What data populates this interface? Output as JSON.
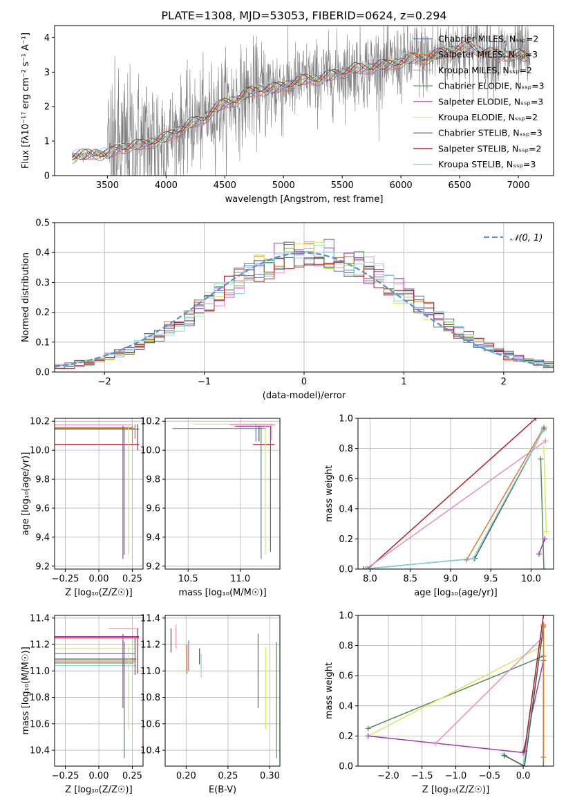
{
  "figure": {
    "title": "PLATE=1308, MJD=53053, FIBERID=0624, z=0.294"
  },
  "chart_data": [
    {
      "id": "spectrum",
      "type": "line",
      "xlabel": "wavelength [Angstrom, rest frame]",
      "ylabel": "Flux [fλ10⁻¹⁷ erg cm⁻² s⁻¹ A⁻¹]",
      "xlim": [
        3050,
        7300
      ],
      "ylim": [
        0,
        4.35
      ],
      "xticks": [
        3500,
        4000,
        4500,
        5000,
        5500,
        6000,
        6500,
        7000
      ],
      "yticks": [
        0,
        1,
        2,
        3,
        4
      ],
      "grid": false,
      "legend_position": "top-right",
      "legend": [
        {
          "label": "Chabrier MILES, Nₛₛₚ=2",
          "color": "#5b7fd0"
        },
        {
          "label": "Salpeter MILES, Nₛₛₚ=3",
          "color": "#e07a2e"
        },
        {
          "label": "Kroupa MILES, Nₛₛₚ=2",
          "color": "#e58cc4"
        },
        {
          "label": "Chabrier ELODIE, Nₛₛₚ=3",
          "color": "#5a8a5c"
        },
        {
          "label": "Salpeter ELODIE, Nₛₛₚ=3",
          "color": "#9b3ab0"
        },
        {
          "label": "Kroupa ELODIE, Nₛₛₚ=2",
          "color": "#d4ec55"
        },
        {
          "label": "Chabrier STELIB, Nₛₛₚ=3",
          "color": "#4b5a4c"
        },
        {
          "label": "Salpeter STELIB, Nₛₛₚ=2",
          "color": "#b51c1c"
        },
        {
          "label": "Kroupa STELIB, Nₛₛₚ=3",
          "color": "#7fd7e0"
        }
      ],
      "data_color": "#808080",
      "data": {
        "x": [
          3200,
          3300,
          3400,
          3500,
          3600,
          3700,
          3800,
          3900,
          4000,
          4100,
          4200,
          4300,
          4400,
          4500,
          4600,
          4700,
          4800,
          4900,
          5000,
          5100,
          5200,
          5300,
          5400,
          5500,
          5600,
          5700,
          5800,
          5900,
          6000,
          6100,
          6200,
          6300,
          6400,
          6500,
          6600,
          6700,
          6800,
          6900,
          7000,
          7100
        ],
        "y": [
          0.55,
          0.6,
          0.65,
          0.6,
          0.8,
          0.85,
          0.9,
          1.0,
          1.1,
          1.3,
          1.5,
          1.6,
          1.9,
          2.1,
          2.2,
          2.4,
          2.5,
          2.5,
          2.6,
          2.7,
          2.8,
          2.8,
          2.9,
          3.0,
          3.1,
          3.1,
          3.2,
          3.2,
          3.3,
          3.4,
          3.4,
          3.5,
          3.6,
          3.7,
          3.7,
          3.6,
          3.5,
          3.5,
          3.5,
          3.4
        ]
      }
    },
    {
      "id": "residuals",
      "type": "histogram",
      "xlabel": "(data-model)/error",
      "ylabel": "Normed distribution",
      "xlim": [
        -2.5,
        2.5
      ],
      "ylim": [
        0,
        0.5
      ],
      "xticks": [
        -2,
        -1,
        0,
        1,
        2
      ],
      "yticks": [
        0.0,
        0.1,
        0.2,
        0.3,
        0.4,
        0.5
      ],
      "grid": true,
      "legend_position": "top-right",
      "legend": [
        {
          "label": "𝒩(0, 1)",
          "color": "#5b8fd8",
          "style": "dashed"
        }
      ],
      "bin_width": 0.1,
      "reference_curve": "normal(0,1) pdf"
    },
    {
      "id": "age-vs-Z",
      "type": "errorbar",
      "xlabel": "Z [log₁₀(Z/Z☉)]",
      "ylabel": "age  [log₁₀(age/yr)]",
      "xlim": [
        -0.33,
        0.33
      ],
      "ylim": [
        9.18,
        10.22
      ],
      "xticks": [
        -0.25,
        0.0,
        0.25
      ],
      "yticks": [
        9.2,
        9.4,
        9.6,
        9.8,
        10.0,
        10.2
      ],
      "grid": true,
      "hlines": [
        {
          "y": 10.175,
          "x": [
            -0.33,
            0.25
          ],
          "color": "#e58cc4"
        },
        {
          "y": 10.155,
          "x": [
            -0.33,
            0.25
          ],
          "color": "#e07a2e"
        },
        {
          "y": 10.15,
          "x": [
            -0.33,
            0.27
          ],
          "color": "#5b7fd0"
        },
        {
          "y": 10.145,
          "x": [
            -0.33,
            0.3
          ],
          "color": "#5a8a5c"
        },
        {
          "y": 10.04,
          "x": [
            -0.33,
            0.3
          ],
          "color": "#b51c1c"
        }
      ],
      "vlines": [
        {
          "x": 0.18,
          "y": [
            9.25,
            10.17
          ],
          "color": "#9b3ab0"
        },
        {
          "x": 0.19,
          "y": [
            9.28,
            10.16
          ],
          "color": "#5a8a5c"
        },
        {
          "x": 0.22,
          "y": [
            9.28,
            10.18
          ],
          "color": "#d4ec55"
        },
        {
          "x": 0.25,
          "y": [
            10.05,
            10.17
          ],
          "color": "#e07a2e"
        },
        {
          "x": 0.27,
          "y": [
            10.08,
            10.18
          ],
          "color": "#5b7fd0"
        },
        {
          "x": 0.29,
          "y": [
            10.0,
            10.18
          ],
          "color": "#b51c1c"
        }
      ]
    },
    {
      "id": "age-vs-mass",
      "type": "errorbar",
      "xlabel": "mass [log₁₀(M/M☉)]",
      "ylabel": "",
      "xlim": [
        10.28,
        11.38
      ],
      "ylim": [
        9.18,
        10.22
      ],
      "xticks": [
        10.5,
        11.0
      ],
      "yticks": [
        9.2,
        9.4,
        9.6,
        9.8,
        10.0,
        10.2
      ],
      "grid": true,
      "hlines": [
        {
          "y": 10.18,
          "x": [
            10.55,
            11.32
          ],
          "color": "#d4ec55"
        },
        {
          "y": 10.175,
          "x": [
            10.9,
            11.34
          ],
          "color": "#e58cc4"
        },
        {
          "y": 10.165,
          "x": [
            10.95,
            11.28
          ],
          "color": "#9b3ab0"
        },
        {
          "y": 10.15,
          "x": [
            10.35,
            11.25
          ],
          "color": "#5a8a5c"
        },
        {
          "y": 10.04,
          "x": [
            11.12,
            11.33
          ],
          "color": "#b51c1c"
        }
      ],
      "vlines": [
        {
          "x": 11.15,
          "y": [
            10.06,
            10.18
          ],
          "color": "#5b7fd0"
        },
        {
          "x": 11.18,
          "y": [
            10.06,
            10.17
          ],
          "color": "#4b5a4c"
        },
        {
          "x": 11.2,
          "y": [
            9.25,
            10.16
          ],
          "color": "#5a8a5c"
        },
        {
          "x": 11.24,
          "y": [
            9.28,
            10.17
          ],
          "color": "#d4ec55"
        },
        {
          "x": 11.29,
          "y": [
            9.3,
            10.17
          ],
          "color": "#9b3ab0"
        },
        {
          "x": 11.3,
          "y": [
            10.07,
            10.18
          ],
          "color": "#e58cc4"
        }
      ]
    },
    {
      "id": "mass-weight-vs-age",
      "type": "line",
      "xlabel": "age  [log₁₀(age/yr)]",
      "ylabel": "mass weight",
      "xlim": [
        7.85,
        10.28
      ],
      "ylim": [
        0,
        1
      ],
      "xticks": [
        8.0,
        8.5,
        9.0,
        9.5,
        10.0
      ],
      "yticks": [
        0.0,
        0.2,
        0.4,
        0.6,
        0.8,
        1.0
      ],
      "grid": true,
      "series": [
        {
          "color": "#b51c1c",
          "x": [
            7.97,
            10.06
          ],
          "y": [
            0.0,
            1.0
          ]
        },
        {
          "color": "#e58cc4",
          "x": [
            7.95,
            10.18
          ],
          "y": [
            0.0,
            0.85
          ]
        },
        {
          "color": "#e07a2e",
          "x": [
            9.2,
            10.16
          ],
          "y": [
            0.06,
            0.94
          ]
        },
        {
          "color": "#4b5a4c",
          "x": [
            7.92,
            9.3,
            10.16
          ],
          "y": [
            0.0,
            0.07,
            0.93
          ]
        },
        {
          "color": "#7fd7e0",
          "x": [
            7.94,
            9.28,
            10.15
          ],
          "y": [
            0.0,
            0.07,
            0.92
          ]
        },
        {
          "color": "#5a8a5c",
          "x": [
            10.12,
            10.16
          ],
          "y": [
            0.73,
            0.0
          ]
        },
        {
          "color": "#9b3ab0",
          "x": [
            10.1,
            10.17
          ],
          "y": [
            0.1,
            0.2
          ]
        },
        {
          "color": "#d4ec55",
          "x": [
            10.16,
            10.19
          ],
          "y": [
            0.8,
            0.25
          ]
        }
      ]
    },
    {
      "id": "mass-vs-Z",
      "type": "errorbar",
      "xlabel": "Z [log₁₀(Z/Z☉)]",
      "ylabel": "mass [log₁₀(M/M☉)]",
      "xlim": [
        -0.33,
        0.33
      ],
      "ylim": [
        10.28,
        11.42
      ],
      "xticks": [
        -0.25,
        0.0,
        0.25
      ],
      "yticks": [
        10.4,
        10.6,
        10.8,
        11.0,
        11.2,
        11.4
      ],
      "grid": true,
      "hlines": [
        {
          "y": 11.26,
          "x": [
            -0.33,
            0.3
          ],
          "color": "#9b3ab0"
        },
        {
          "y": 11.25,
          "x": [
            -0.33,
            0.3
          ],
          "color": "#b51c1c"
        },
        {
          "y": 11.17,
          "x": [
            -0.33,
            0.28
          ],
          "color": "#d4ec55"
        },
        {
          "y": 11.13,
          "x": [
            -0.33,
            0.27
          ],
          "color": "#5b7fd0"
        },
        {
          "y": 11.09,
          "x": [
            -0.33,
            0.28
          ],
          "color": "#4b5a4c"
        },
        {
          "y": 11.075,
          "x": [
            -0.33,
            0.27
          ],
          "color": "#e07a2e"
        },
        {
          "y": 11.06,
          "x": [
            -0.33,
            0.26
          ],
          "color": "#5a8a5c"
        },
        {
          "y": 11.04,
          "x": [
            -0.33,
            0.28
          ],
          "color": "#7fd7e0"
        },
        {
          "y": 11.32,
          "x": [
            0.07,
            0.3
          ],
          "color": "#e58cc4"
        }
      ],
      "vlines": [
        {
          "x": 0.18,
          "y": [
            10.72,
            11.28
          ],
          "color": "#9b3ab0"
        },
        {
          "x": 0.19,
          "y": [
            10.34,
            11.22
          ],
          "color": "#5a8a5c"
        },
        {
          "x": 0.22,
          "y": [
            10.56,
            11.18
          ],
          "color": "#d4ec55"
        },
        {
          "x": 0.27,
          "y": [
            10.97,
            11.25
          ],
          "color": "#4b5a4c"
        },
        {
          "x": 0.29,
          "y": [
            10.98,
            11.32
          ],
          "color": "#b51c1c"
        }
      ]
    },
    {
      "id": "mass-vs-ebv",
      "type": "errorbar",
      "xlabel": "E(B-V)",
      "ylabel": "",
      "xlim": [
        0.175,
        0.312
      ],
      "ylim": [
        10.28,
        11.42
      ],
      "xticks": [
        0.2,
        0.25,
        0.3
      ],
      "yticks": [
        10.4,
        10.6,
        10.8,
        11.0,
        11.2,
        11.4
      ],
      "grid": true,
      "vlines": [
        {
          "x": 0.182,
          "y": [
            11.14,
            11.32
          ],
          "color": "#b51c1c"
        },
        {
          "x": 0.188,
          "y": [
            11.17,
            11.35
          ],
          "color": "#e58cc4"
        },
        {
          "x": 0.201,
          "y": [
            10.98,
            11.2
          ],
          "color": "#e07a2e"
        },
        {
          "x": 0.203,
          "y": [
            11.0,
            11.23
          ],
          "color": "#5b7fd0"
        },
        {
          "x": 0.216,
          "y": [
            11.05,
            11.17
          ],
          "color": "#4b5a4c"
        },
        {
          "x": 0.218,
          "y": [
            10.95,
            11.13
          ],
          "color": "#7fd7e0"
        },
        {
          "x": 0.286,
          "y": [
            10.72,
            11.28
          ],
          "color": "#9b3ab0"
        },
        {
          "x": 0.295,
          "y": [
            10.56,
            11.18
          ],
          "color": "#d4ec55"
        },
        {
          "x": 0.308,
          "y": [
            10.34,
            11.22
          ],
          "color": "#5a8a5c"
        }
      ]
    },
    {
      "id": "mass-weight-vs-Z",
      "type": "line",
      "xlabel": "Z [log₁₀(Z/Z☉)]",
      "ylabel": "mass weight",
      "xlim": [
        -2.45,
        0.45
      ],
      "ylim": [
        0,
        1
      ],
      "xticks": [
        -2.0,
        -1.5,
        -1.0,
        -0.5,
        0.0
      ],
      "yticks": [
        0.0,
        0.2,
        0.4,
        0.6,
        0.8,
        1.0
      ],
      "grid": true,
      "series": [
        {
          "color": "#5a8a5c",
          "x": [
            -2.3,
            0.3,
            0.3
          ],
          "y": [
            0.25,
            0.73,
            0.0
          ]
        },
        {
          "color": "#d4ec55",
          "x": [
            -2.3,
            0.3
          ],
          "y": [
            0.2,
            0.8
          ]
        },
        {
          "color": "#9b3ab0",
          "x": [
            -2.3,
            0.0,
            0.3
          ],
          "y": [
            0.2,
            0.09,
            0.7
          ]
        },
        {
          "color": "#e58cc4",
          "x": [
            -1.3,
            0.28
          ],
          "y": [
            0.15,
            0.85
          ]
        },
        {
          "color": "#7fd7e0",
          "x": [
            -0.3,
            0.0,
            0.3
          ],
          "y": [
            0.08,
            0.0,
            0.92
          ]
        },
        {
          "color": "#4b5a4c",
          "x": [
            -0.28,
            0.02,
            0.3
          ],
          "y": [
            0.07,
            0.0,
            0.93
          ]
        },
        {
          "color": "#b51c1c",
          "x": [
            0.02,
            0.3
          ],
          "y": [
            0.1,
            1.0
          ]
        },
        {
          "color": "#e07a2e",
          "x": [
            0.3,
            0.3
          ],
          "y": [
            0.06,
            0.94
          ]
        }
      ]
    }
  ]
}
